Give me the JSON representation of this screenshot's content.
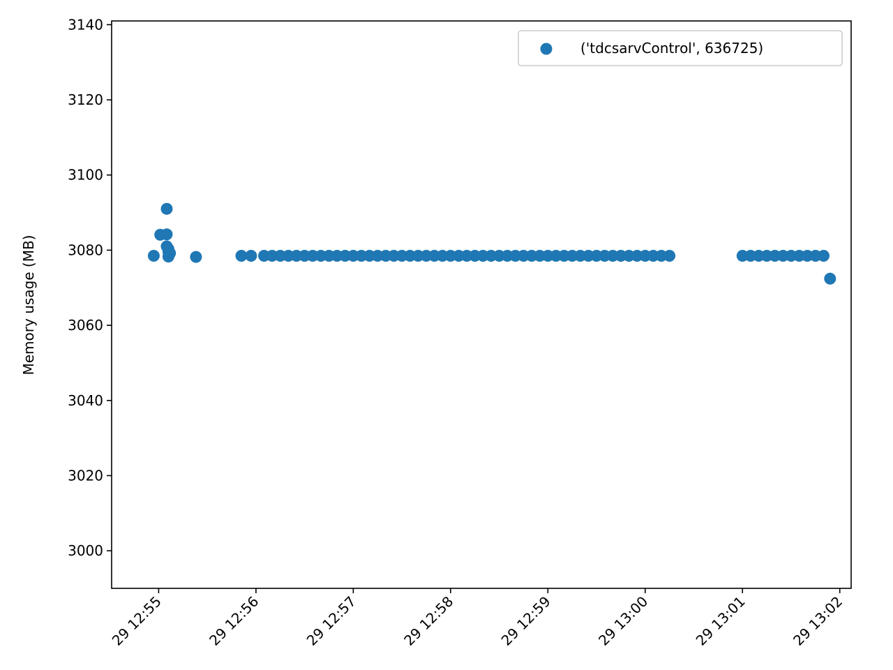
{
  "chart_data": {
    "type": "scatter",
    "title": "",
    "xlabel": "",
    "ylabel": "Memory usage (MB)",
    "x_axis_type": "time",
    "xlim": [
      "12:54:31",
      "13:02:07"
    ],
    "ylim": [
      2990,
      3141
    ],
    "y_ticks": [
      3000,
      3020,
      3040,
      3060,
      3080,
      3100,
      3120,
      3140
    ],
    "x_ticks": [
      {
        "time": "12:55:00",
        "label": "29 12:55"
      },
      {
        "time": "12:56:00",
        "label": "29 12:56"
      },
      {
        "time": "12:57:00",
        "label": "29 12:57"
      },
      {
        "time": "12:58:00",
        "label": "29 12:58"
      },
      {
        "time": "12:59:00",
        "label": "29 12:59"
      },
      {
        "time": "13:00:00",
        "label": "29 13:00"
      },
      {
        "time": "13:01:00",
        "label": "29 13:01"
      },
      {
        "time": "13:02:00",
        "label": "29 13:02"
      }
    ],
    "grid": false,
    "legend_position": "top-right",
    "color": "#1f77b4",
    "series": [
      {
        "name": "('tdcsarvControl', 636725)",
        "points": [
          [
            "12:54:57",
            3078.5
          ],
          [
            "12:55:01",
            3084.1
          ],
          [
            "12:55:05",
            3091
          ],
          [
            "12:55:05",
            3084.2
          ],
          [
            "12:55:05",
            3081
          ],
          [
            "12:55:06",
            3080.3
          ],
          [
            "12:55:06",
            3079.6
          ],
          [
            "12:55:06",
            3078.3
          ],
          [
            "12:55:07",
            3079.2
          ],
          [
            "12:55:23",
            3078.2
          ],
          [
            "12:55:51",
            3078.5
          ],
          [
            "12:55:57",
            3078.5
          ],
          [
            "12:56:05",
            3078.5
          ],
          [
            "12:56:10",
            3078.5
          ],
          [
            "12:56:15",
            3078.5
          ],
          [
            "12:56:20",
            3078.5
          ],
          [
            "12:56:25",
            3078.5
          ],
          [
            "12:56:30",
            3078.5
          ],
          [
            "12:56:35",
            3078.5
          ],
          [
            "12:56:40",
            3078.5
          ],
          [
            "12:56:45",
            3078.5
          ],
          [
            "12:56:50",
            3078.5
          ],
          [
            "12:56:55",
            3078.5
          ],
          [
            "12:57:00",
            3078.5
          ],
          [
            "12:57:05",
            3078.5
          ],
          [
            "12:57:10",
            3078.5
          ],
          [
            "12:57:15",
            3078.5
          ],
          [
            "12:57:20",
            3078.5
          ],
          [
            "12:57:25",
            3078.5
          ],
          [
            "12:57:30",
            3078.5
          ],
          [
            "12:57:35",
            3078.5
          ],
          [
            "12:57:40",
            3078.5
          ],
          [
            "12:57:45",
            3078.5
          ],
          [
            "12:57:50",
            3078.5
          ],
          [
            "12:57:55",
            3078.5
          ],
          [
            "12:58:00",
            3078.5
          ],
          [
            "12:58:05",
            3078.5
          ],
          [
            "12:58:10",
            3078.5
          ],
          [
            "12:58:15",
            3078.5
          ],
          [
            "12:58:20",
            3078.5
          ],
          [
            "12:58:25",
            3078.5
          ],
          [
            "12:58:30",
            3078.5
          ],
          [
            "12:58:35",
            3078.5
          ],
          [
            "12:58:40",
            3078.5
          ],
          [
            "12:58:45",
            3078.5
          ],
          [
            "12:58:50",
            3078.5
          ],
          [
            "12:58:55",
            3078.5
          ],
          [
            "12:59:00",
            3078.5
          ],
          [
            "12:59:05",
            3078.5
          ],
          [
            "12:59:10",
            3078.5
          ],
          [
            "12:59:15",
            3078.5
          ],
          [
            "12:59:20",
            3078.5
          ],
          [
            "12:59:25",
            3078.5
          ],
          [
            "12:59:30",
            3078.5
          ],
          [
            "12:59:35",
            3078.5
          ],
          [
            "12:59:40",
            3078.5
          ],
          [
            "12:59:45",
            3078.5
          ],
          [
            "12:59:50",
            3078.5
          ],
          [
            "12:59:55",
            3078.5
          ],
          [
            "13:00:00",
            3078.5
          ],
          [
            "13:00:05",
            3078.5
          ],
          [
            "13:00:10",
            3078.5
          ],
          [
            "13:00:15",
            3078.5
          ],
          [
            "13:01:00",
            3078.5
          ],
          [
            "13:01:05",
            3078.5
          ],
          [
            "13:01:10",
            3078.5
          ],
          [
            "13:01:15",
            3078.5
          ],
          [
            "13:01:20",
            3078.5
          ],
          [
            "13:01:25",
            3078.5
          ],
          [
            "13:01:30",
            3078.5
          ],
          [
            "13:01:35",
            3078.5
          ],
          [
            "13:01:40",
            3078.5
          ],
          [
            "13:01:45",
            3078.5
          ],
          [
            "13:01:50",
            3078.5
          ],
          [
            "13:01:54",
            3072.4
          ]
        ]
      }
    ]
  }
}
